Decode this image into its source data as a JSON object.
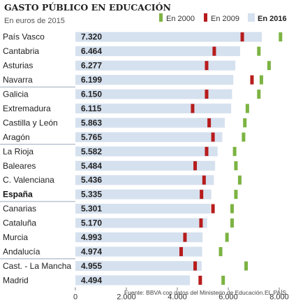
{
  "header": {
    "title": "GASTO PÚBLICO EN EDUCACIÓN",
    "subtitle": "En euros de 2015"
  },
  "legend": [
    {
      "label": "En 2000",
      "color": "#7cb342",
      "bold": false
    },
    {
      "label": "En 2009",
      "color": "#b71c1c",
      "bold": false
    },
    {
      "label": "En 2016",
      "color": "#d6e1ef",
      "bold": true
    }
  ],
  "footer": {
    "source": "Fuente: BBVA con datos del Ministerio de Educación.",
    "credit": "EL PAÍS"
  },
  "chart_data": {
    "type": "bar",
    "orientation": "horizontal",
    "title": "GASTO PÚBLICO EN EDUCACIÓN",
    "subtitle": "En euros de 2015",
    "xlim": [
      0,
      8600
    ],
    "x_ticks": [
      0,
      2000,
      4000,
      6000,
      8000
    ],
    "x_tick_labels": [
      "0",
      "2.000",
      "4.000",
      "6.000",
      "8.000"
    ],
    "grid": false,
    "legend_position": "top-right",
    "categories": [
      "País Vasco",
      "Cantabria",
      "Asturias",
      "Navarra",
      "Galicia",
      "Extremadura",
      "Castilla y León",
      "Aragón",
      "La Rioja",
      "Baleares",
      "C. Valenciana",
      "España",
      "Canarias",
      "Cataluña",
      "Murcia",
      "Andalucía",
      "Cast. - La Mancha",
      "Madrid"
    ],
    "highlight_category": "España",
    "value_labels": [
      "7.320",
      "6.464",
      "6.277",
      "6.199",
      "6.150",
      "6.115",
      "5.863",
      "5.765",
      "5.582",
      "5.484",
      "5.436",
      "5.335",
      "5.301",
      "5.170",
      "4.993",
      "4.974",
      "4.955",
      "4.494"
    ],
    "series": [
      {
        "name": "En 2016",
        "color": "#d6e1ef",
        "values": [
          7320,
          6464,
          6277,
          6199,
          6150,
          6115,
          5863,
          5765,
          5582,
          5484,
          5436,
          5335,
          5301,
          5170,
          4993,
          4974,
          4955,
          4494
        ]
      },
      {
        "name": "En 2009",
        "color": "#b71c1c",
        "values": [
          6550,
          5450,
          5150,
          6930,
          5150,
          4600,
          5250,
          5400,
          5150,
          4700,
          5050,
          4950,
          5400,
          4930,
          4300,
          4150,
          4700,
          4900
        ]
      },
      {
        "name": "En 2000",
        "color": "#7cb342",
        "values": [
          8050,
          7200,
          7600,
          7300,
          7200,
          6750,
          6650,
          6600,
          6250,
          6300,
          6450,
          6300,
          6150,
          6150,
          5950,
          5700,
          6700,
          5800
        ]
      }
    ]
  }
}
